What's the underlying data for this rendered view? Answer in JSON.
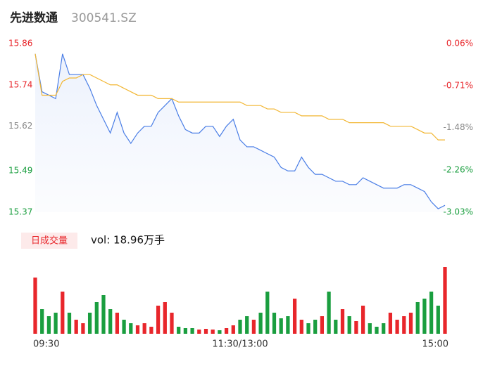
{
  "chart_data": {
    "type": "intraday",
    "title": "先进数通",
    "subtitle": "300541.SZ",
    "volume_label": "日成交量",
    "volume_text": "vol: 18.96万手",
    "x": [
      0,
      4,
      8,
      12,
      16,
      20,
      24,
      28,
      32,
      36,
      40,
      44,
      48,
      52,
      56,
      60,
      64,
      68,
      72,
      76,
      80,
      84,
      88,
      92,
      96,
      100,
      104,
      108,
      112,
      116,
      120,
      124,
      128,
      132,
      136,
      140,
      144,
      148,
      152,
      156,
      160,
      164,
      168,
      172,
      176,
      180,
      184,
      188,
      192,
      196,
      200,
      204,
      208,
      212,
      216,
      220,
      224,
      228,
      232,
      236,
      240
    ],
    "xlim": [
      0,
      240
    ],
    "xticks": [
      {
        "value": 0,
        "label": "09:30"
      },
      {
        "value": 120,
        "label": "11:30/13:00"
      },
      {
        "value": 240,
        "label": "15:00"
      }
    ],
    "ylim": [
      15.37,
      15.86
    ],
    "yticks": [
      15.86,
      15.74,
      15.62,
      15.49,
      15.37
    ],
    "ytick_colors": [
      "#e8262b",
      "#e8262b",
      "#888888",
      "#1a9e3f",
      "#1a9e3f"
    ],
    "y2lim": [
      -3.03,
      0.06
    ],
    "y2ticks": [
      {
        "value": 0.06,
        "label": "0.06%"
      },
      {
        "value": -0.71,
        "label": "-0.71%"
      },
      {
        "value": -1.48,
        "label": "-1.48%"
      },
      {
        "value": -2.26,
        "label": "-2.26%"
      },
      {
        "value": -3.03,
        "label": "-3.03%"
      }
    ],
    "y2tick_colors": [
      "#e8262b",
      "#e8262b",
      "#888888",
      "#1a9e3f",
      "#1a9e3f"
    ],
    "series": [
      {
        "name": "price",
        "color": "#4a7ee6",
        "values": [
          15.83,
          15.72,
          15.71,
          15.7,
          15.83,
          15.77,
          15.77,
          15.77,
          15.73,
          15.68,
          15.64,
          15.6,
          15.66,
          15.6,
          15.57,
          15.6,
          15.62,
          15.62,
          15.66,
          15.68,
          15.7,
          15.65,
          15.61,
          15.6,
          15.6,
          15.62,
          15.62,
          15.59,
          15.62,
          15.64,
          15.58,
          15.56,
          15.56,
          15.55,
          15.54,
          15.53,
          15.5,
          15.49,
          15.49,
          15.53,
          15.5,
          15.48,
          15.48,
          15.47,
          15.46,
          15.46,
          15.45,
          15.45,
          15.47,
          15.46,
          15.45,
          15.44,
          15.44,
          15.44,
          15.45,
          15.45,
          15.44,
          15.43,
          15.4,
          15.38,
          15.39
        ]
      },
      {
        "name": "average",
        "color": "#f2b632",
        "values": [
          15.83,
          15.71,
          15.71,
          15.71,
          15.75,
          15.76,
          15.76,
          15.77,
          15.77,
          15.76,
          15.75,
          15.74,
          15.74,
          15.73,
          15.72,
          15.71,
          15.71,
          15.71,
          15.7,
          15.7,
          15.7,
          15.69,
          15.69,
          15.69,
          15.69,
          15.69,
          15.69,
          15.69,
          15.69,
          15.69,
          15.69,
          15.68,
          15.68,
          15.68,
          15.67,
          15.67,
          15.66,
          15.66,
          15.66,
          15.65,
          15.65,
          15.65,
          15.65,
          15.64,
          15.64,
          15.64,
          15.63,
          15.63,
          15.63,
          15.63,
          15.63,
          15.63,
          15.62,
          15.62,
          15.62,
          15.62,
          15.61,
          15.6,
          15.6,
          15.58,
          15.58
        ]
      }
    ],
    "volume": {
      "ylim": [
        0,
        100
      ],
      "up_color": "#e8262b",
      "down_color": "#1a9e3f",
      "values": [
        80,
        35,
        25,
        30,
        60,
        30,
        20,
        15,
        30,
        45,
        55,
        35,
        30,
        20,
        15,
        12,
        15,
        10,
        40,
        45,
        30,
        10,
        8,
        8,
        6,
        7,
        6,
        5,
        8,
        12,
        20,
        25,
        20,
        30,
        60,
        30,
        22,
        25,
        50,
        20,
        15,
        20,
        25,
        60,
        20,
        35,
        25,
        18,
        40,
        15,
        10,
        15,
        30,
        20,
        25,
        30,
        45,
        50,
        60,
        40,
        95
      ]
    }
  }
}
